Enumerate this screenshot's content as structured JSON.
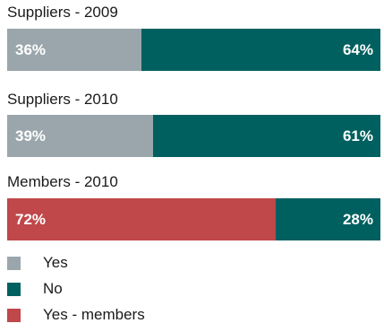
{
  "chart_data": {
    "type": "bar",
    "orientation": "horizontal",
    "stacked": true,
    "percent_scale": [
      0,
      100
    ],
    "categories": [
      "Suppliers - 2009",
      "Suppliers - 2010",
      "Members - 2010"
    ],
    "bars": [
      {
        "category": "Suppliers - 2009",
        "segments": [
          {
            "legend": "Yes",
            "value": 36,
            "label": "36%",
            "color": "#9aa6ab"
          },
          {
            "legend": "No",
            "value": 64,
            "label": "64%",
            "color": "#00605f"
          }
        ]
      },
      {
        "category": "Suppliers - 2010",
        "segments": [
          {
            "legend": "Yes",
            "value": 39,
            "label": "39%",
            "color": "#9aa6ab"
          },
          {
            "legend": "No",
            "value": 61,
            "label": "61%",
            "color": "#00605f"
          }
        ]
      },
      {
        "category": "Members - 2010",
        "segments": [
          {
            "legend": "Yes - members",
            "value": 72,
            "label": "72%",
            "color": "#c0474a"
          },
          {
            "legend": "No",
            "value": 28,
            "label": "28%",
            "color": "#00605f"
          }
        ]
      }
    ],
    "legend": [
      {
        "name": "Yes",
        "color": "#9aa6ab"
      },
      {
        "name": "No",
        "color": "#00605f"
      },
      {
        "name": "Yes - members",
        "color": "#c0474a"
      }
    ],
    "legend_position": "bottom-left",
    "grid": false
  }
}
